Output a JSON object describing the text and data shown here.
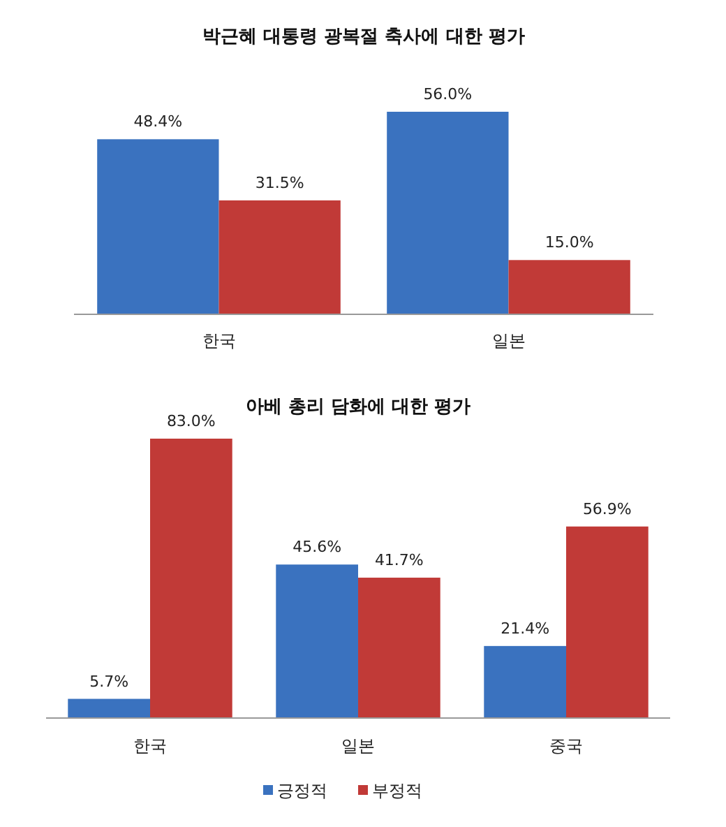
{
  "chart_data": [
    {
      "type": "bar",
      "title": "박근혜 대통령 광복절 축사에 대한 평가",
      "categories": [
        "한국",
        "일본"
      ],
      "legend": false,
      "series": [
        {
          "color": "#3a72bf",
          "values": [
            48.4,
            56.0
          ],
          "value_labels": [
            "48.4%",
            "56.0%"
          ]
        },
        {
          "color": "#c13a37",
          "values": [
            31.5,
            15.0
          ],
          "value_labels": [
            "31.5%",
            "15.0%"
          ]
        }
      ]
    },
    {
      "type": "bar",
      "title": "아베 총리 담화에 대한 평가",
      "categories": [
        "한국",
        "일본",
        "중국"
      ],
      "legend": "bottom",
      "series": [
        {
          "name": "긍정적",
          "color": "#3a72bf",
          "values": [
            5.7,
            45.6,
            21.4
          ],
          "value_labels": [
            "5.7%",
            "45.6%",
            "21.4%"
          ]
        },
        {
          "name": "부정적",
          "color": "#c13a37",
          "values": [
            83.0,
            41.7,
            56.9
          ],
          "value_labels": [
            "83.0%",
            "41.7%",
            "56.9%"
          ]
        }
      ]
    }
  ]
}
